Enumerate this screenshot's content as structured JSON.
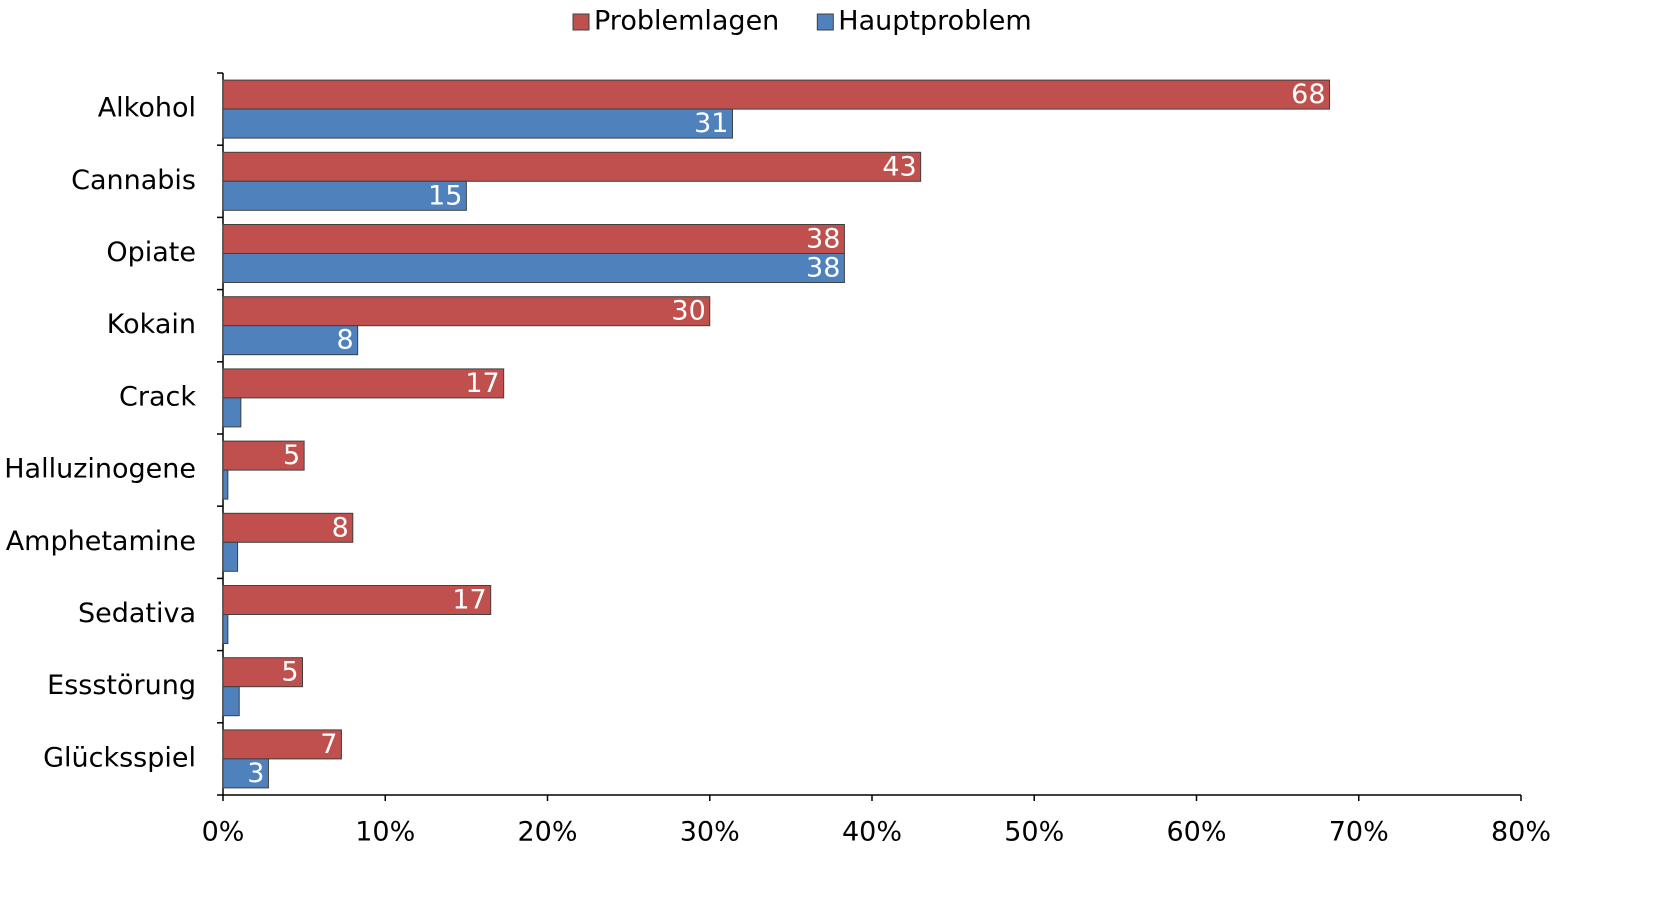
{
  "chart_data": {
    "type": "hbar",
    "categories": [
      "Alkohol",
      "Cannabis",
      "Opiate",
      "Kokain",
      "Crack",
      "Halluzinogene",
      "Amphetamine",
      "Sedativa",
      "Essstörung",
      "Glücksspiel"
    ],
    "series": [
      {
        "name": "Problemlagen",
        "color": "#c0504d",
        "values": [
          68.2,
          43.0,
          38.3,
          30.0,
          17.3,
          5.0,
          8.0,
          16.5,
          4.9,
          7.3
        ],
        "value_labels": [
          "68",
          "43",
          "38",
          "30",
          "17",
          "5",
          "8",
          "17",
          "5",
          "7"
        ]
      },
      {
        "name": "Hauptproblem",
        "color": "#4f81bd",
        "values": [
          31.4,
          15.0,
          38.3,
          8.3,
          1.1,
          0.3,
          0.9,
          0.3,
          1.0,
          2.8
        ],
        "value_labels": [
          "31",
          "15",
          "38",
          "8",
          null,
          null,
          null,
          null,
          null,
          "3"
        ]
      }
    ],
    "xlim": [
      0,
      80
    ],
    "xticks": [
      {
        "value": 0,
        "label": "0%"
      },
      {
        "value": 10,
        "label": "10%"
      },
      {
        "value": 20,
        "label": "20%"
      },
      {
        "value": 30,
        "label": "30%"
      },
      {
        "value": 40,
        "label": "40%"
      },
      {
        "value": 50,
        "label": "50%"
      },
      {
        "value": 60,
        "label": "60%"
      },
      {
        "value": 70,
        "label": "70%"
      },
      {
        "value": 80,
        "label": "80%"
      }
    ],
    "legend": "top"
  }
}
